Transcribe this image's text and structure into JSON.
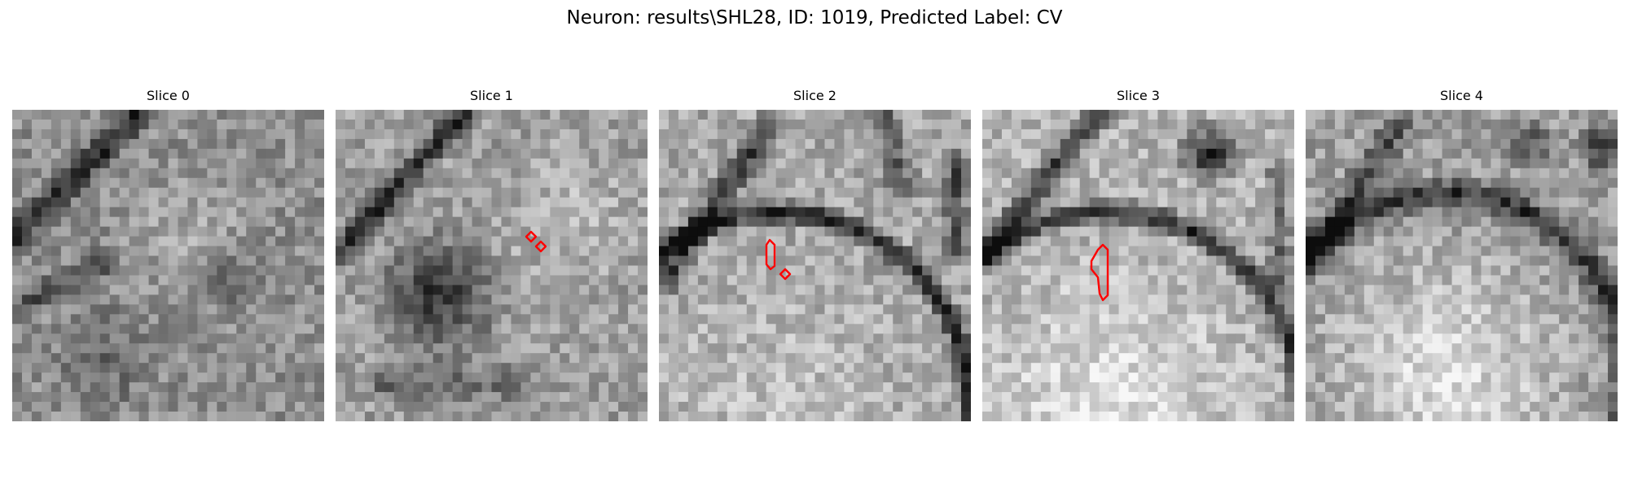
{
  "figure": {
    "title": "Neuron: results\\SHL28, ID: 1019, Predicted Label: CV"
  },
  "panels": [
    {
      "title": "Slice 0",
      "image": "grayscale electron-microscopy tile with dark membrane bands across the upper left and a speckled lighter interior"
    },
    {
      "title": "Slice 1",
      "image": "grayscale tile with a dark diagonal membrane at top left and a dark blotchy region in the center",
      "annotation": "two small red diamond outlines near the center right"
    },
    {
      "title": "Slice 2",
      "image": "grayscale tile with a curved dark membrane arching around a lighter rounded cell body",
      "annotation": "red elongated outline with a small red diamond below it"
    },
    {
      "title": "Slice 3",
      "image": "grayscale tile with a dark curved membrane around a bright round cell body",
      "annotation": "red irregular elongated outline at the center"
    },
    {
      "title": "Slice 4",
      "image": "grayscale tile with a large bright rounded cell body bordered by a darker arc"
    }
  ],
  "colors": {
    "annotation": "#ff0000"
  }
}
